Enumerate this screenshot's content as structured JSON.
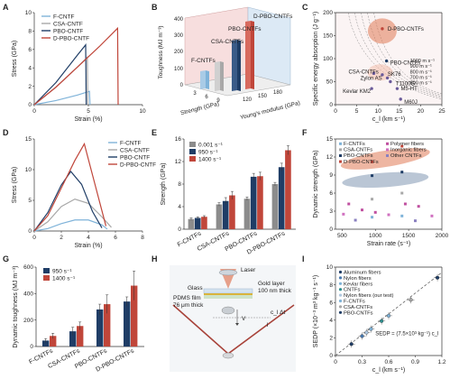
{
  "figure": {
    "panel_letters": [
      "A",
      "B",
      "C",
      "D",
      "E",
      "F",
      "G",
      "H",
      "I"
    ]
  },
  "colors": {
    "f": "#7fb3d9",
    "csa": "#a8a8a8",
    "pbo": "#1f3d66",
    "dpbo": "#c0463a",
    "gray_bar": "#8c8c8c",
    "light_bar": "#bcd4ea"
  },
  "chart_data": [
    {
      "panel": "A",
      "type": "line",
      "xlabel": "Strain (%)",
      "ylabel": "Stress (GPa)",
      "xlim": [
        0,
        10
      ],
      "ylim": [
        0,
        10
      ],
      "xticks": [
        0,
        5,
        10
      ],
      "yticks": [
        0,
        2,
        4,
        6,
        8,
        10
      ],
      "legend_position": "top-left",
      "series": [
        {
          "name": "F-CNTF",
          "color_key": "f",
          "x": [
            0,
            2,
            4,
            5.1,
            5.15
          ],
          "y": [
            0,
            0.45,
            1.05,
            1.45,
            0
          ]
        },
        {
          "name": "CSA-CNTF",
          "color_key": "csa",
          "x": [
            0,
            2,
            4,
            4.9,
            4.95
          ],
          "y": [
            0,
            1.9,
            4.1,
            5.15,
            0
          ]
        },
        {
          "name": "PBO-CNTF",
          "color_key": "pbo",
          "x": [
            0,
            2,
            4,
            4.75,
            4.8
          ],
          "y": [
            0,
            2.4,
            5.4,
            6.5,
            0
          ]
        },
        {
          "name": "D-PBO-CNTF",
          "color_key": "dpbo",
          "x": [
            0,
            2,
            4,
            6,
            7.7,
            7.75
          ],
          "y": [
            0,
            1.9,
            4.1,
            6.3,
            8.3,
            0
          ]
        }
      ]
    },
    {
      "panel": "B",
      "type": "bar",
      "zlabel": "Toughness (MJ m⁻³)",
      "xlabel": "Strength (GPa)",
      "ylabel": "Young's modulus (GPa)",
      "ztick_labels": [
        "0",
        "100",
        "200",
        "300",
        "400"
      ],
      "xtick_labels": [
        "3",
        "6",
        "9"
      ],
      "ytick_labels": [
        "120",
        "150",
        "180"
      ],
      "bars": [
        {
          "name": "F-CNTFs",
          "toughness": 45,
          "strength": 1.5,
          "modulus": 70
        },
        {
          "name": "CSA-CNTFs",
          "toughness": 115,
          "strength": 4.5,
          "modulus": 140
        },
        {
          "name": "PBO-CNTFs",
          "toughness": 215,
          "strength": 6.5,
          "modulus": 160
        },
        {
          "name": "D-PBO-CNTFs",
          "toughness": 380,
          "strength": 8.3,
          "modulus": 165
        }
      ]
    },
    {
      "panel": "C",
      "type": "scatter",
      "xlabel": "c_l (km s⁻¹)",
      "ylabel": "Specific energy absorption (J g⁻¹)",
      "xlim": [
        0,
        25
      ],
      "ylim": [
        0,
        200
      ],
      "xticks": [
        0,
        5,
        10,
        15,
        20,
        25
      ],
      "yticks": [
        0,
        50,
        100,
        150,
        200
      ],
      "contours": [
        "1000 m s⁻¹",
        "900 m s⁻¹",
        "800 m s⁻¹",
        "700 m s⁻¹",
        "600 m s⁻¹"
      ],
      "points": [
        {
          "name": "D-PBO-CNTFs",
          "x": 11,
          "y": 165
        },
        {
          "name": "PBO-CNTFs",
          "x": 12,
          "y": 95
        },
        {
          "name": "CSA-CNTFs",
          "x": 9,
          "y": 68
        },
        {
          "name": "SK76",
          "x": 11,
          "y": 65
        },
        {
          "name": "Zylon AS",
          "x": 12.2,
          "y": 58
        },
        {
          "name": "T1100G",
          "x": 12.9,
          "y": 50
        },
        {
          "name": "Kevlar KM2",
          "x": 8.5,
          "y": 35
        },
        {
          "name": "M5-HT",
          "x": 14.5,
          "y": 35
        },
        {
          "name": "M60J",
          "x": 15.3,
          "y": 12
        }
      ]
    },
    {
      "panel": "D",
      "type": "line",
      "xlabel": "Strain (%)",
      "ylabel": "Stress (GPa)",
      "xlim": [
        0,
        8
      ],
      "ylim": [
        0,
        15
      ],
      "xticks": [
        0,
        2,
        4,
        6,
        8
      ],
      "yticks": [
        0,
        5,
        10,
        15
      ],
      "legend_position": "top-right",
      "series": [
        {
          "name": "F-CNTF",
          "color_key": "f",
          "x": [
            0,
            1,
            2,
            3,
            4,
            5,
            5.4
          ],
          "y": [
            0,
            0.4,
            1.2,
            1.8,
            1.8,
            1.0,
            0.3
          ]
        },
        {
          "name": "CSA-CNTF",
          "color_key": "csa",
          "x": [
            0,
            1,
            2,
            3,
            4,
            5,
            5.7
          ],
          "y": [
            0,
            1.5,
            4.0,
            5.2,
            4.5,
            2.3,
            0.6
          ]
        },
        {
          "name": "PBO-CNTF",
          "color_key": "pbo",
          "x": [
            0,
            1,
            2,
            2.7,
            3.5,
            4.3,
            5.0
          ],
          "y": [
            0,
            3.0,
            7.5,
            9.7,
            7.6,
            3.2,
            0.5
          ]
        },
        {
          "name": "D-PBO-CNTF",
          "color_key": "dpbo",
          "x": [
            0,
            1,
            2,
            3,
            3.7,
            4.5,
            5.3
          ],
          "y": [
            0,
            2.5,
            7.0,
            11.5,
            14.2,
            7.5,
            0.8
          ]
        }
      ]
    },
    {
      "panel": "E",
      "type": "bar",
      "ylabel": "Strength (GPa)",
      "ylim": [
        0,
        16
      ],
      "yticks": [
        0,
        4,
        8,
        12,
        16
      ],
      "categories": [
        "F-CNTFs",
        "CSA-CNTFs",
        "PBO-CNTFs",
        "D-PBO-CNTFs"
      ],
      "legend_position": "top-left",
      "series": [
        {
          "name": "0.001 s⁻¹",
          "color_key": "gray_bar",
          "values": [
            1.8,
            4.4,
            5.4,
            8.0
          ],
          "errors": [
            0.2,
            0.3,
            0.3,
            0.3
          ]
        },
        {
          "name": "950 s⁻¹",
          "color_key": "pbo",
          "values": [
            2.0,
            5.0,
            9.3,
            11.0
          ],
          "errors": [
            0.2,
            0.6,
            0.6,
            0.7
          ]
        },
        {
          "name": "1400 s⁻¹",
          "color_key": "dpbo",
          "values": [
            2.2,
            6.0,
            9.4,
            14.0
          ],
          "errors": [
            0.2,
            0.7,
            0.7,
            0.8
          ]
        }
      ]
    },
    {
      "panel": "F",
      "type": "scatter",
      "xlabel": "Strain rate (s⁻¹)",
      "ylabel": "Dynamic strength (GPa)",
      "xlim": [
        400,
        2000
      ],
      "ylim": [
        0,
        15
      ],
      "xticks": [
        500,
        1000,
        1500,
        2000
      ],
      "yticks": [
        0,
        3,
        6,
        9,
        12,
        15
      ],
      "legend": [
        "F-CNTFs",
        "CSA-CNTFs",
        "PBO-CNTFs",
        "D-PBO-CNTFs",
        "Polymer fibers",
        "Inorganic fibers",
        "Other CNTFs"
      ],
      "points": [
        {
          "group": "D-PBO-CNTFs",
          "x": 950,
          "y": 11.2
        },
        {
          "group": "D-PBO-CNTFs",
          "x": 1400,
          "y": 13.8
        },
        {
          "group": "PBO-CNTFs",
          "x": 950,
          "y": 8.9
        },
        {
          "group": "PBO-CNTFs",
          "x": 1400,
          "y": 9.5
        },
        {
          "group": "CSA-CNTFs",
          "x": 950,
          "y": 5.0
        },
        {
          "group": "CSA-CNTFs",
          "x": 1400,
          "y": 6.0
        },
        {
          "group": "F-CNTFs",
          "x": 950,
          "y": 2.0
        },
        {
          "group": "F-CNTFs",
          "x": 1400,
          "y": 2.2
        },
        {
          "group": "Polymer fibers",
          "x": 600,
          "y": 4.2
        },
        {
          "group": "Polymer fibers",
          "x": 800,
          "y": 3.2
        },
        {
          "group": "Polymer fibers",
          "x": 1000,
          "y": 2.8
        },
        {
          "group": "Polymer fibers",
          "x": 1450,
          "y": 4.2
        },
        {
          "group": "Polymer fibers",
          "x": 1650,
          "y": 3.8
        },
        {
          "group": "Inorganic fibers",
          "x": 520,
          "y": 2.5
        },
        {
          "group": "Inorganic fibers",
          "x": 1200,
          "y": 2.4
        },
        {
          "group": "Inorganic fibers",
          "x": 1850,
          "y": 2.2
        },
        {
          "group": "Other CNTFs",
          "x": 700,
          "y": 1.5
        },
        {
          "group": "Other CNTFs",
          "x": 1600,
          "y": 1.4
        }
      ]
    },
    {
      "panel": "G",
      "type": "bar",
      "ylabel": "Dynamic toughness (MJ m⁻³)",
      "ylim": [
        0,
        600
      ],
      "yticks": [
        0,
        200,
        400,
        600
      ],
      "categories": [
        "F-CNTFs",
        "CSA-CNTFs",
        "PBO-CNTFs",
        "D-PBO-CNTFs"
      ],
      "legend_position": "top-left",
      "series": [
        {
          "name": "950 s⁻¹",
          "color_key": "pbo",
          "values": [
            45,
            115,
            280,
            340
          ],
          "errors": [
            15,
            30,
            40,
            35
          ]
        },
        {
          "name": "1400 s⁻¹",
          "color_key": "dpbo",
          "values": [
            80,
            155,
            320,
            460
          ],
          "errors": [
            20,
            30,
            70,
            110
          ]
        }
      ]
    },
    {
      "panel": "I",
      "type": "scatter",
      "xlabel": "c_l (km s⁻¹)",
      "ylabel": "SEDP (×10⁻³ m³ kg⁻¹ s⁻¹)",
      "xlim": [
        0,
        1.2
      ],
      "ylim": [
        0,
        10
      ],
      "xticks": [
        0,
        0.3,
        0.6,
        0.9,
        1.2
      ],
      "xtick_labels": [
        "0",
        "0.3",
        "0.6",
        "0.9",
        "1.2"
      ],
      "yticks": [
        0,
        2,
        4,
        6,
        8,
        10
      ],
      "equation": "SEDP = (7.5×10³ kg⁻¹) c_l",
      "legend": [
        "Aluminum fibers",
        "Nylon fibers",
        "Kevlar fibers",
        "CNTFs",
        "Nylon fibers (our test)",
        "F-CNTFs",
        "CSA-CNTFs",
        "PBO-CNTFs"
      ],
      "points": [
        {
          "group": "Aluminum fibers",
          "x": 0.18,
          "y": 1.3
        },
        {
          "group": "Nylon fibers",
          "x": 0.3,
          "y": 2.2
        },
        {
          "group": "Kevlar fibers",
          "x": 0.4,
          "y": 3.0
        },
        {
          "group": "CNTFs",
          "x": 0.52,
          "y": 3.9
        },
        {
          "group": "Nylon fibers (our test)",
          "x": 0.35,
          "y": 2.6
        },
        {
          "group": "F-CNTFs",
          "x": 0.6,
          "y": 4.5
        },
        {
          "group": "CSA-CNTFs",
          "x": 0.85,
          "y": 6.3
        },
        {
          "group": "PBO-CNTFs",
          "x": 1.15,
          "y": 8.8
        }
      ]
    }
  ],
  "panelH": {
    "labels": {
      "laser": "Laser",
      "glass": "Glass",
      "gold_layer": "Gold layer",
      "gold_thickness": "100 nm thick",
      "pdms_film": "PDMS film",
      "pdms_thickness": "76 μm thick",
      "v": "V",
      "cl_dt": "c_l Δt",
      "l": "l"
    }
  }
}
